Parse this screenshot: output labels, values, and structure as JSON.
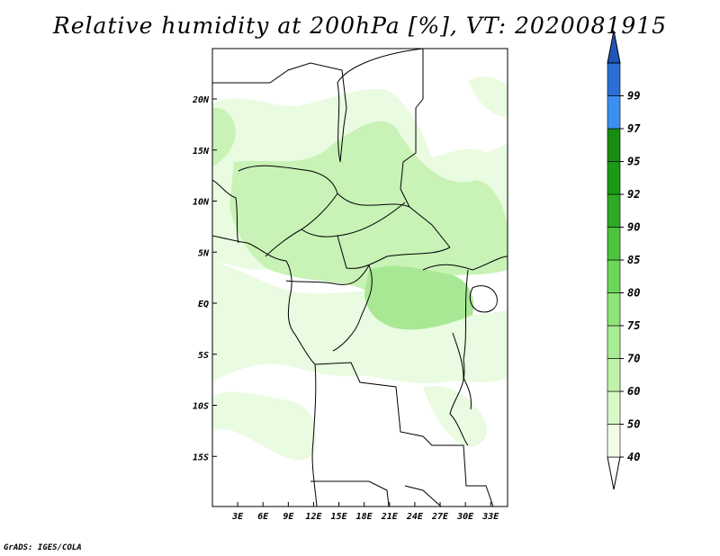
{
  "title": "Relative humidity at 200hPa [%], VT: 2020081915",
  "credit": "GrADS: IGES/COLA",
  "map": {
    "lon_range": [
      0,
      35
    ],
    "lat_range": [
      -20,
      25
    ],
    "x_ticks": [
      {
        "lon": 3,
        "label": "3E"
      },
      {
        "lon": 6,
        "label": "6E"
      },
      {
        "lon": 9,
        "label": "9E"
      },
      {
        "lon": 12,
        "label": "12E"
      },
      {
        "lon": 15,
        "label": "15E"
      },
      {
        "lon": 18,
        "label": "18E"
      },
      {
        "lon": 21,
        "label": "21E"
      },
      {
        "lon": 24,
        "label": "24E"
      },
      {
        "lon": 27,
        "label": "27E"
      },
      {
        "lon": 30,
        "label": "30E"
      },
      {
        "lon": 33,
        "label": "33E"
      }
    ],
    "y_ticks": [
      {
        "lat": 20,
        "label": "20N"
      },
      {
        "lat": 15,
        "label": "15N"
      },
      {
        "lat": 10,
        "label": "10N"
      },
      {
        "lat": 5,
        "label": "5N"
      },
      {
        "lat": 0,
        "label": "EQ"
      },
      {
        "lat": -5,
        "label": "5S"
      },
      {
        "lat": -10,
        "label": "10S"
      },
      {
        "lat": -15,
        "label": "15S"
      }
    ]
  },
  "colorbar": {
    "levels": [
      {
        "label": "40",
        "color": "#f0fce8"
      },
      {
        "label": "50",
        "color": "#d8f8c8"
      },
      {
        "label": "60",
        "color": "#c0f2aa"
      },
      {
        "label": "70",
        "color": "#a8ec94"
      },
      {
        "label": "75",
        "color": "#8fe47a"
      },
      {
        "label": "80",
        "color": "#6cd85a"
      },
      {
        "label": "85",
        "color": "#4cc43c"
      },
      {
        "label": "90",
        "color": "#2eaa24"
      },
      {
        "label": "92",
        "color": "#1a9a16"
      },
      {
        "label": "95",
        "color": "#198c12"
      },
      {
        "label": "97",
        "color": "#3b8ff0"
      },
      {
        "label": "99",
        "color": "#2a6fd6"
      }
    ],
    "top_color": "#1f55b8"
  },
  "field_colors": {
    "light": "#e9fbe0",
    "mid": "#c8f2b6",
    "dark": "#a8e894"
  }
}
